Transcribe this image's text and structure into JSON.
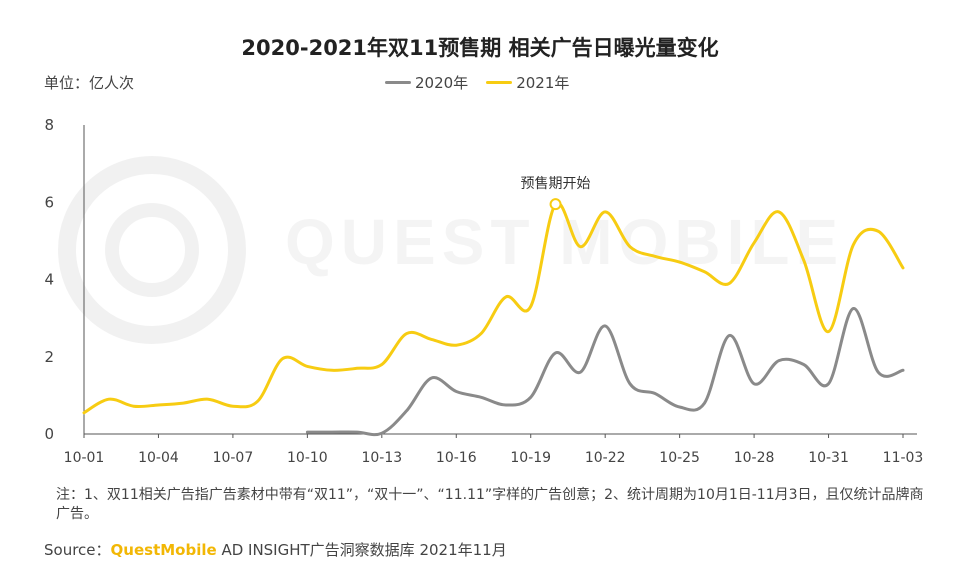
{
  "title": "2020-2021年双11预售期 相关广告日曝光量变化",
  "unit_label": "单位：亿人次",
  "footnote": "注：1、双11相关广告指广告素材中带有“双11”，“双十一”、“11.11”字样的广告创意；2、统计周期为10月1日-11月3日，且仅统计品牌商广告。",
  "source": {
    "prefix": "Source：",
    "brand": "QuestMobile",
    "rest": " AD INSIGHT广告洞察数据库 2021年11月"
  },
  "watermark": "QUEST MOBILE",
  "colors": {
    "series_2020": "#8a8a8a",
    "series_2021": "#f7cc12",
    "axis": "#555555",
    "brand": "#f2b705"
  },
  "chart_data": {
    "type": "line",
    "x": [
      "10-01",
      "10-02",
      "10-03",
      "10-04",
      "10-05",
      "10-06",
      "10-07",
      "10-08",
      "10-09",
      "10-10",
      "10-11",
      "10-12",
      "10-13",
      "10-14",
      "10-15",
      "10-16",
      "10-17",
      "10-18",
      "10-19",
      "10-20",
      "10-21",
      "10-22",
      "10-23",
      "10-24",
      "10-25",
      "10-26",
      "10-27",
      "10-28",
      "10-29",
      "10-30",
      "10-31",
      "11-01",
      "11-02",
      "11-03"
    ],
    "x_tick_labels": [
      "10-01",
      "10-04",
      "10-07",
      "10-10",
      "10-13",
      "10-16",
      "10-19",
      "10-22",
      "10-25",
      "10-28",
      "10-31",
      "11-03"
    ],
    "ylim": [
      0,
      8
    ],
    "y_ticks": [
      0,
      2,
      4,
      6,
      8
    ],
    "series": [
      {
        "name": "2020年",
        "values": [
          null,
          null,
          null,
          null,
          null,
          null,
          null,
          null,
          null,
          0.05,
          0.05,
          0.05,
          0.02,
          0.6,
          1.45,
          1.1,
          0.95,
          0.75,
          0.95,
          2.1,
          1.6,
          2.8,
          1.3,
          1.05,
          0.7,
          0.8,
          2.55,
          1.3,
          1.9,
          1.8,
          1.3,
          3.25,
          1.6,
          1.65
        ]
      },
      {
        "name": "2021年",
        "values": [
          0.55,
          0.9,
          0.72,
          0.75,
          0.8,
          0.9,
          0.72,
          0.85,
          1.95,
          1.75,
          1.65,
          1.7,
          1.8,
          2.6,
          2.45,
          2.3,
          2.6,
          3.55,
          3.3,
          5.95,
          4.85,
          5.75,
          4.85,
          4.6,
          4.45,
          4.2,
          3.9,
          4.95,
          5.75,
          4.5,
          2.65,
          4.9,
          5.25,
          4.3
        ]
      }
    ],
    "annotation": {
      "text": "预售期开始",
      "x": "10-20",
      "series": "2021年"
    },
    "legend_position": "top-center",
    "grid": false
  }
}
